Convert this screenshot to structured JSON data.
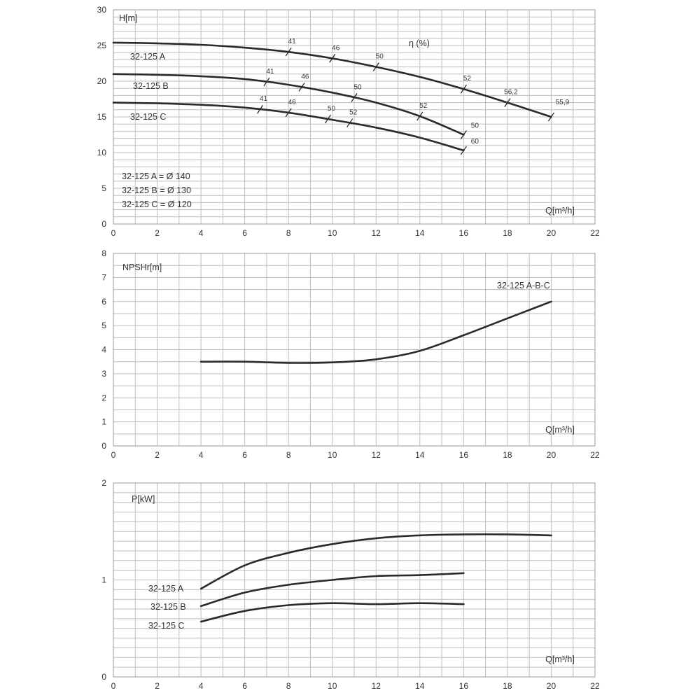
{
  "chart_data": [
    {
      "type": "line",
      "ylabel": "H[m]",
      "xlabel": "Q[m³/h]",
      "xlim": [
        0,
        22
      ],
      "ylim": [
        0,
        30
      ],
      "x_ticks": [
        "0",
        "2",
        "4",
        "6",
        "8",
        "10",
        "12",
        "14",
        "16",
        "18",
        "20",
        "22"
      ],
      "y_ticks": [
        "0",
        "5",
        "10",
        "15",
        "20",
        "25",
        "30"
      ],
      "grid": true,
      "efficiency_label": "η (%)",
      "legend_lines": [
        "32-125 A = Ø 140",
        "32-125 B = Ø 130",
        "32-125 C = Ø 120"
      ],
      "series": [
        {
          "name": "32-125 A",
          "points": [
            [
              0,
              25.4
            ],
            [
              2,
              25.3
            ],
            [
              4,
              25.1
            ],
            [
              6,
              24.7
            ],
            [
              8,
              24.1
            ],
            [
              10,
              23.2
            ],
            [
              12,
              22.0
            ],
            [
              14,
              20.6
            ],
            [
              16,
              18.9
            ],
            [
              18,
              17.0
            ],
            [
              20,
              15.0
            ]
          ],
          "efficiency": [
            {
              "q": 8,
              "label": "41"
            },
            {
              "q": 10,
              "label": "46"
            },
            {
              "q": 12,
              "label": "50"
            },
            {
              "q": 16,
              "label": "52"
            },
            {
              "q": 18,
              "label": "56,2"
            },
            {
              "q": 20,
              "label": "55,9"
            }
          ]
        },
        {
          "name": "32-125 B",
          "points": [
            [
              0,
              21.0
            ],
            [
              2,
              20.9
            ],
            [
              4,
              20.7
            ],
            [
              6,
              20.3
            ],
            [
              8,
              19.5
            ],
            [
              10,
              18.4
            ],
            [
              12,
              17.0
            ],
            [
              14,
              15.1
            ],
            [
              16,
              12.5
            ]
          ],
          "efficiency": [
            {
              "q": 7,
              "label": "41"
            },
            {
              "q": 8.6,
              "label": "46"
            },
            {
              "q": 11,
              "label": "50"
            },
            {
              "q": 14,
              "label": "52"
            },
            {
              "q": 16,
              "label": "50"
            }
          ]
        },
        {
          "name": "32-125 C",
          "points": [
            [
              0,
              17.0
            ],
            [
              2,
              16.9
            ],
            [
              4,
              16.7
            ],
            [
              6,
              16.3
            ],
            [
              8,
              15.6
            ],
            [
              10,
              14.6
            ],
            [
              12,
              13.5
            ],
            [
              14,
              12.1
            ],
            [
              16,
              10.3
            ]
          ],
          "efficiency": [
            {
              "q": 6.7,
              "label": "41"
            },
            {
              "q": 8,
              "label": "46"
            },
            {
              "q": 9.8,
              "label": "50"
            },
            {
              "q": 10.8,
              "label": "52"
            },
            {
              "q": 16,
              "label": "60"
            }
          ]
        }
      ]
    },
    {
      "type": "line",
      "ylabel": "NPSHr[m]",
      "xlabel": "Q[m³/h]",
      "xlim": [
        0,
        22
      ],
      "ylim": [
        0,
        8
      ],
      "x_ticks": [
        "0",
        "2",
        "4",
        "6",
        "8",
        "10",
        "12",
        "14",
        "16",
        "18",
        "20",
        "22"
      ],
      "y_ticks": [
        "0",
        "1",
        "2",
        "3",
        "4",
        "5",
        "6",
        "7",
        "8"
      ],
      "grid": true,
      "series": [
        {
          "name": "32-125 A-B-C",
          "points": [
            [
              4,
              3.5
            ],
            [
              6,
              3.5
            ],
            [
              8,
              3.45
            ],
            [
              10,
              3.47
            ],
            [
              12,
              3.6
            ],
            [
              14,
              3.95
            ],
            [
              16,
              4.6
            ],
            [
              18,
              5.3
            ],
            [
              20,
              6.0
            ]
          ]
        }
      ]
    },
    {
      "type": "line",
      "ylabel": "P[kW]",
      "xlabel": "Q[m³/h]",
      "xlim": [
        0,
        22
      ],
      "ylim": [
        0,
        2
      ],
      "x_ticks": [
        "0",
        "2",
        "4",
        "6",
        "8",
        "10",
        "12",
        "14",
        "16",
        "18",
        "20",
        "22"
      ],
      "y_ticks": [
        "0",
        "1",
        "2"
      ],
      "grid": true,
      "series": [
        {
          "name": "32-125 A",
          "points": [
            [
              4,
              0.91
            ],
            [
              6,
              1.15
            ],
            [
              8,
              1.28
            ],
            [
              10,
              1.37
            ],
            [
              12,
              1.43
            ],
            [
              14,
              1.46
            ],
            [
              16,
              1.47
            ],
            [
              18,
              1.47
            ],
            [
              20,
              1.46
            ]
          ]
        },
        {
          "name": "32-125 B",
          "points": [
            [
              4,
              0.73
            ],
            [
              6,
              0.87
            ],
            [
              8,
              0.95
            ],
            [
              10,
              1.0
            ],
            [
              12,
              1.04
            ],
            [
              14,
              1.05
            ],
            [
              16,
              1.07
            ]
          ]
        },
        {
          "name": "32-125 C",
          "points": [
            [
              4,
              0.57
            ],
            [
              6,
              0.68
            ],
            [
              8,
              0.74
            ],
            [
              10,
              0.76
            ],
            [
              12,
              0.75
            ],
            [
              14,
              0.76
            ],
            [
              16,
              0.75
            ]
          ]
        }
      ]
    }
  ]
}
